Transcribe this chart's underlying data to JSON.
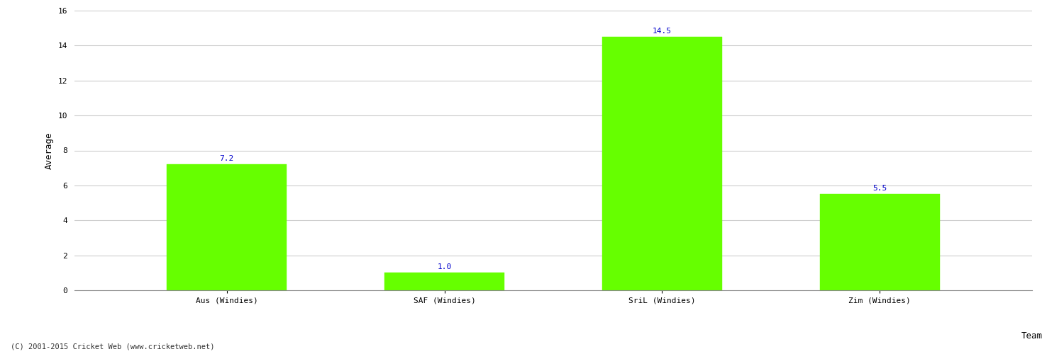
{
  "categories": [
    "Aus (Windies)",
    "SAF (Windies)",
    "SriL (Windies)",
    "Zim (Windies)"
  ],
  "values": [
    7.2,
    1.0,
    14.5,
    5.5
  ],
  "bar_color": "#66ff00",
  "bar_edge_color": "#66ff00",
  "label_color": "#0000cc",
  "xlabel": "Team",
  "ylabel": "Average",
  "ylim": [
    0,
    16
  ],
  "yticks": [
    0,
    2,
    4,
    6,
    8,
    10,
    12,
    14,
    16
  ],
  "grid_color": "#cccccc",
  "background_color": "#ffffff",
  "figure_color": "#ffffff",
  "footer_text": "(C) 2001-2015 Cricket Web (www.cricketweb.net)",
  "label_fontsize": 8,
  "axis_label_fontsize": 9,
  "tick_fontsize": 8,
  "footer_fontsize": 7.5
}
